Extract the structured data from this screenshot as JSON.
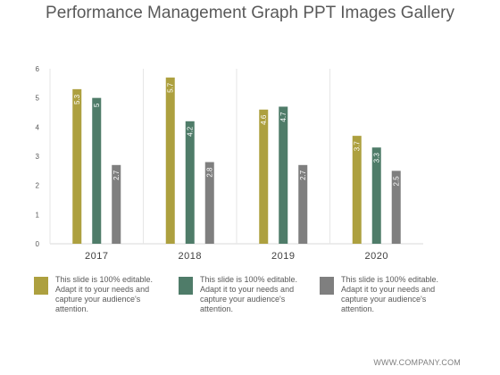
{
  "title": "Performance Management Graph PPT Images Gallery",
  "chart_data": {
    "type": "bar",
    "categories": [
      "2017",
      "2018",
      "2019",
      "2020"
    ],
    "series": [
      {
        "values": [
          5.3,
          5.7,
          4.6,
          3.7
        ],
        "labels": [
          "5.3",
          "5.7",
          "4.6",
          "3.7"
        ],
        "color": "#ada03f"
      },
      {
        "values": [
          5.0,
          4.2,
          4.7,
          3.3
        ],
        "labels": [
          "5",
          "4.2",
          "4.7",
          "3.3"
        ],
        "color": "#4f7c69"
      },
      {
        "values": [
          2.7,
          2.8,
          2.7,
          2.5
        ],
        "labels": [
          "2.7",
          "2.8",
          "2.7",
          "2.5"
        ],
        "color": "#7f7f7f"
      }
    ],
    "ylim": [
      0,
      6
    ],
    "yticks": [
      "0",
      "1",
      "2",
      "3",
      "4",
      "5",
      "6"
    ],
    "grid": false
  },
  "legend": [
    {
      "text": "This slide is 100% editable. Adapt it to your needs and capture your audience's attention.",
      "color": "#ada03f"
    },
    {
      "text": "This slide is 100% editable. Adapt it to your needs and capture your audience's attention.",
      "color": "#4f7c69"
    },
    {
      "text": "This slide is 100% editable. Adapt it to your needs and capture your audience's attention.",
      "color": "#7f7f7f"
    }
  ],
  "footer": "WWW.COMPANY.COM"
}
